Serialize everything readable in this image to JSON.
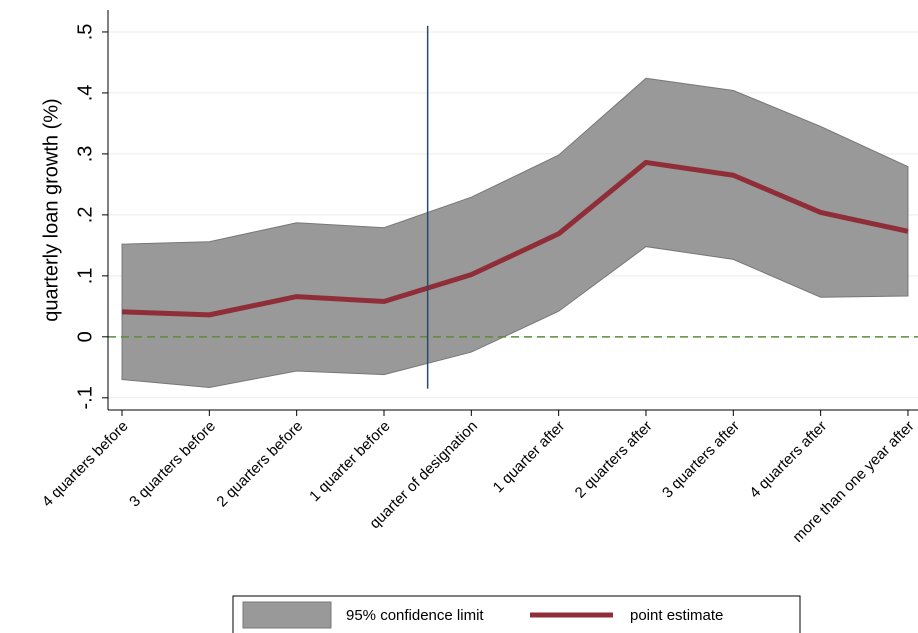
{
  "chart_data": {
    "type": "line",
    "y_label": "quarterly loan growth (%)",
    "categories": [
      "4 quarters before",
      "3 quarters before",
      "2 quarters before",
      "1 quarter before",
      "quarter of designation",
      "1 quarter after",
      "2 quarters after",
      "3 quarters after",
      "4 quarters after",
      "more than one year after"
    ],
    "series": [
      {
        "name": "95% confidence limit",
        "type": "area",
        "color": "#999999",
        "upper": [
          0.152,
          0.156,
          0.187,
          0.179,
          0.229,
          0.298,
          0.424,
          0.404,
          0.345,
          0.279
        ],
        "lower": [
          -0.07,
          -0.083,
          -0.056,
          -0.062,
          -0.025,
          0.042,
          0.148,
          0.127,
          0.065,
          0.067
        ]
      },
      {
        "name": "point estimate",
        "type": "line",
        "color": "#8f2d38",
        "values": [
          0.041,
          0.036,
          0.066,
          0.058,
          0.102,
          0.169,
          0.286,
          0.265,
          0.204,
          0.173
        ]
      }
    ],
    "ylim": [
      -0.12,
      0.536
    ],
    "yticks": [
      {
        "value": -0.1,
        "label": "-.1"
      },
      0,
      {
        "value": 0.1,
        "label": ".1"
      },
      {
        "value": 0.2,
        "label": ".2"
      },
      {
        "value": 0.3,
        "label": ".3"
      },
      {
        "value": 0.4,
        "label": ".4"
      },
      {
        "value": 0.5,
        "label": ".5"
      }
    ],
    "grid": true,
    "hline": {
      "y": 0,
      "color": "#5f8a3a"
    },
    "vline": {
      "x": 4.5,
      "ylim": [
        -0.085,
        0.51
      ],
      "color": "#2b4a6b"
    },
    "legend": "bottom"
  }
}
